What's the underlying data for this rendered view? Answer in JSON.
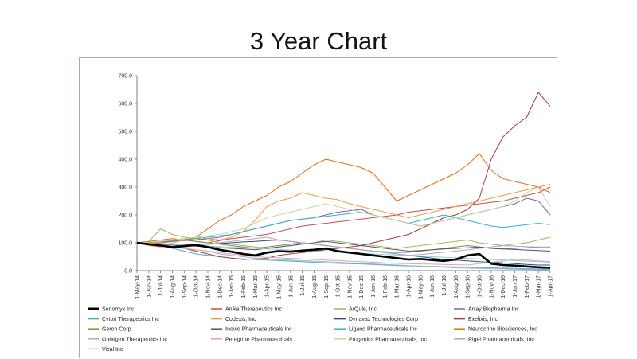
{
  "slide": {
    "title": "3 Year Chart"
  },
  "chart_data": {
    "type": "line",
    "title": "3 Year Chart",
    "xlabel": "",
    "ylabel": "",
    "ylim": [
      0,
      700
    ],
    "yticks": [
      "0.0",
      "100.0",
      "200.0",
      "300.0",
      "400.0",
      "500.0",
      "600.0",
      "700.0"
    ],
    "categories": [
      "1-May-14",
      "1-Jun-14",
      "1-Jul-14",
      "1-Aug-14",
      "1-Sep-14",
      "1-Oct-14",
      "1-Nov-14",
      "1-Dec-14",
      "1-Jan-15",
      "1-Feb-15",
      "1-Mar-15",
      "1-Apr-15",
      "1-May-15",
      "1-Jun-15",
      "1-Jul-15",
      "1-Aug-15",
      "1-Sep-15",
      "1-Oct-15",
      "1-Nov-15",
      "1-Dec-15",
      "1-Jan-16",
      "1-Feb-16",
      "1-Mar-16",
      "1-Apr-16",
      "1-May-16",
      "1-Jun-16",
      "1-Jul-16",
      "1-Aug-16",
      "1-Sep-16",
      "1-Oct-16",
      "1-Nov-16",
      "1-Dec-16",
      "1-Jan-17",
      "1-Feb-17",
      "1-Mar-17",
      "1-Apr-17"
    ],
    "legend_position": "bottom",
    "series": [
      {
        "name": "Senomyx Inc",
        "color": "#000000",
        "width": 2.6,
        "values": [
          100,
          95,
          90,
          85,
          88,
          92,
          85,
          75,
          68,
          60,
          55,
          65,
          70,
          68,
          72,
          75,
          80,
          70,
          65,
          60,
          55,
          50,
          45,
          40,
          42,
          38,
          35,
          40,
          55,
          60,
          25,
          20,
          18,
          15,
          12,
          10
        ]
      },
      {
        "name": "Anika Therapeutics Inc",
        "color": "#c0504d",
        "width": 1,
        "values": [
          100,
          98,
          100,
          105,
          110,
          105,
          100,
          108,
          115,
          120,
          125,
          130,
          140,
          150,
          160,
          165,
          170,
          175,
          180,
          185,
          190,
          195,
          200,
          210,
          215,
          220,
          225,
          230,
          235,
          240,
          245,
          250,
          260,
          270,
          280,
          300
        ]
      },
      {
        "name": "ArQule, Inc",
        "color": "#9bbb59",
        "width": 1,
        "values": [
          100,
          105,
          150,
          130,
          120,
          115,
          110,
          100,
          95,
          90,
          85,
          80,
          85,
          90,
          95,
          100,
          110,
          105,
          100,
          95,
          90,
          85,
          80,
          85,
          90,
          95,
          100,
          105,
          110,
          100,
          95,
          90,
          95,
          100,
          110,
          120
        ]
      },
      {
        "name": "Array Biopharma Inc",
        "color": "#8064a2",
        "width": 1,
        "values": [
          100,
          102,
          104,
          106,
          108,
          110,
          115,
          120,
          130,
          140,
          150,
          160,
          170,
          180,
          185,
          190,
          200,
          210,
          215,
          220,
          200,
          190,
          180,
          170,
          160,
          170,
          180,
          190,
          200,
          210,
          220,
          230,
          240,
          260,
          250,
          200
        ]
      },
      {
        "name": "Cytori Therapeutics Inc",
        "color": "#4bacc6",
        "width": 1,
        "values": [
          100,
          95,
          90,
          80,
          70,
          60,
          55,
          50,
          45,
          42,
          40,
          38,
          36,
          34,
          32,
          30,
          28,
          26,
          25,
          24,
          22,
          20,
          18,
          17,
          16,
          15,
          14,
          13,
          12,
          11,
          10,
          9,
          8,
          7,
          6,
          5
        ]
      },
      {
        "name": "Codexis, Inc",
        "color": "#f79646",
        "width": 1,
        "values": [
          100,
          90,
          85,
          100,
          110,
          120,
          115,
          110,
          120,
          140,
          180,
          230,
          250,
          260,
          280,
          270,
          260,
          255,
          240,
          230,
          220,
          210,
          200,
          190,
          200,
          210,
          220,
          230,
          240,
          250,
          260,
          270,
          280,
          290,
          300,
          310
        ]
      },
      {
        "name": "Dynavax Technologies Corp",
        "color": "#2c4d75",
        "width": 1,
        "values": [
          100,
          98,
          96,
          95,
          94,
          93,
          95,
          97,
          100,
          103,
          105,
          108,
          110,
          105,
          100,
          95,
          90,
          85,
          80,
          75,
          70,
          65,
          60,
          55,
          50,
          45,
          40,
          38,
          35,
          32,
          30,
          28,
          25,
          22,
          20,
          20
        ]
      },
      {
        "name": "Exelixis, Inc",
        "color": "#a23b3b",
        "width": 1,
        "values": [
          100,
          95,
          90,
          85,
          80,
          70,
          60,
          50,
          45,
          40,
          42,
          45,
          55,
          60,
          65,
          70,
          75,
          80,
          85,
          90,
          100,
          110,
          120,
          130,
          150,
          170,
          190,
          200,
          220,
          260,
          400,
          480,
          520,
          550,
          640,
          590
        ]
      },
      {
        "name": "Geron Corp",
        "color": "#77933c",
        "width": 1,
        "values": [
          100,
          100,
          105,
          110,
          115,
          105,
          100,
          95,
          90,
          85,
          80,
          85,
          90,
          95,
          100,
          95,
          90,
          85,
          80,
          75,
          70,
          68,
          65,
          66,
          70,
          75,
          80,
          85,
          90,
          85,
          80,
          78,
          80,
          82,
          84,
          85
        ]
      },
      {
        "name": "Inovio Pharmaceuticals Inc",
        "color": "#5f497a",
        "width": 1,
        "values": [
          100,
          98,
          95,
          92,
          90,
          88,
          85,
          82,
          80,
          78,
          75,
          80,
          85,
          90,
          95,
          100,
          105,
          100,
          95,
          90,
          85,
          80,
          75,
          70,
          72,
          75,
          78,
          80,
          82,
          85,
          80,
          78,
          76,
          74,
          72,
          70
        ]
      },
      {
        "name": "Ligand Pharmaceuticals Inc",
        "color": "#31b0d5",
        "width": 1,
        "values": [
          100,
          102,
          105,
          108,
          110,
          115,
          120,
          125,
          130,
          140,
          150,
          160,
          170,
          180,
          185,
          190,
          195,
          200,
          205,
          210,
          200,
          190,
          180,
          170,
          180,
          190,
          200,
          190,
          180,
          170,
          160,
          155,
          160,
          165,
          170,
          165
        ]
      },
      {
        "name": "Neurocrine Biosciences, Inc",
        "color": "#e46c0a",
        "width": 1,
        "values": [
          100,
          105,
          110,
          115,
          110,
          120,
          150,
          180,
          200,
          230,
          250,
          270,
          300,
          320,
          350,
          380,
          400,
          390,
          380,
          370,
          350,
          300,
          250,
          270,
          290,
          310,
          330,
          350,
          380,
          420,
          360,
          330,
          320,
          310,
          300,
          280
        ]
      },
      {
        "name": "Orexigen Therapeutics Inc",
        "color": "#95b3d7",
        "width": 1,
        "values": [
          100,
          95,
          90,
          85,
          80,
          75,
          70,
          60,
          55,
          50,
          45,
          42,
          40,
          38,
          36,
          34,
          32,
          30,
          28,
          26,
          24,
          22,
          20,
          18,
          16,
          14,
          12,
          10,
          9,
          8,
          7,
          6,
          5,
          4,
          3,
          3
        ]
      },
      {
        "name": "Peregrine Pharmaceuticals",
        "color": "#e6a3a3",
        "width": 1,
        "values": [
          100,
          95,
          90,
          85,
          80,
          75,
          70,
          65,
          60,
          55,
          50,
          48,
          46,
          44,
          42,
          40,
          38,
          36,
          34,
          32,
          30,
          28,
          26,
          25,
          24,
          23,
          22,
          21,
          20,
          25,
          30,
          35,
          40,
          38,
          35,
          33
        ]
      },
      {
        "name": "Progenics Pharmaceuticals, Inc",
        "color": "#c3d69b",
        "width": 1,
        "values": [
          100,
          102,
          105,
          110,
          115,
          120,
          125,
          130,
          140,
          150,
          170,
          190,
          200,
          210,
          220,
          230,
          240,
          230,
          220,
          210,
          200,
          190,
          180,
          170,
          160,
          170,
          180,
          190,
          200,
          210,
          220,
          230,
          250,
          280,
          300,
          230
        ]
      },
      {
        "name": "Rigel Pharmaceuticals, Inc",
        "color": "#b3a2c7",
        "width": 1,
        "values": [
          100,
          95,
          90,
          85,
          88,
          92,
          95,
          100,
          105,
          110,
          115,
          120,
          110,
          105,
          100,
          95,
          90,
          85,
          80,
          75,
          70,
          65,
          60,
          55,
          58,
          62,
          66,
          70,
          75,
          80,
          85,
          90,
          88,
          86,
          85,
          84
        ]
      },
      {
        "name": "Vical Inc",
        "color": "#93cddd",
        "width": 1,
        "values": [
          100,
          98,
          96,
          94,
          92,
          90,
          88,
          86,
          84,
          82,
          80,
          78,
          76,
          74,
          72,
          70,
          68,
          66,
          64,
          62,
          60,
          58,
          56,
          54,
          52,
          50,
          48,
          46,
          44,
          42,
          40,
          38,
          36,
          34,
          32,
          30
        ]
      }
    ]
  }
}
